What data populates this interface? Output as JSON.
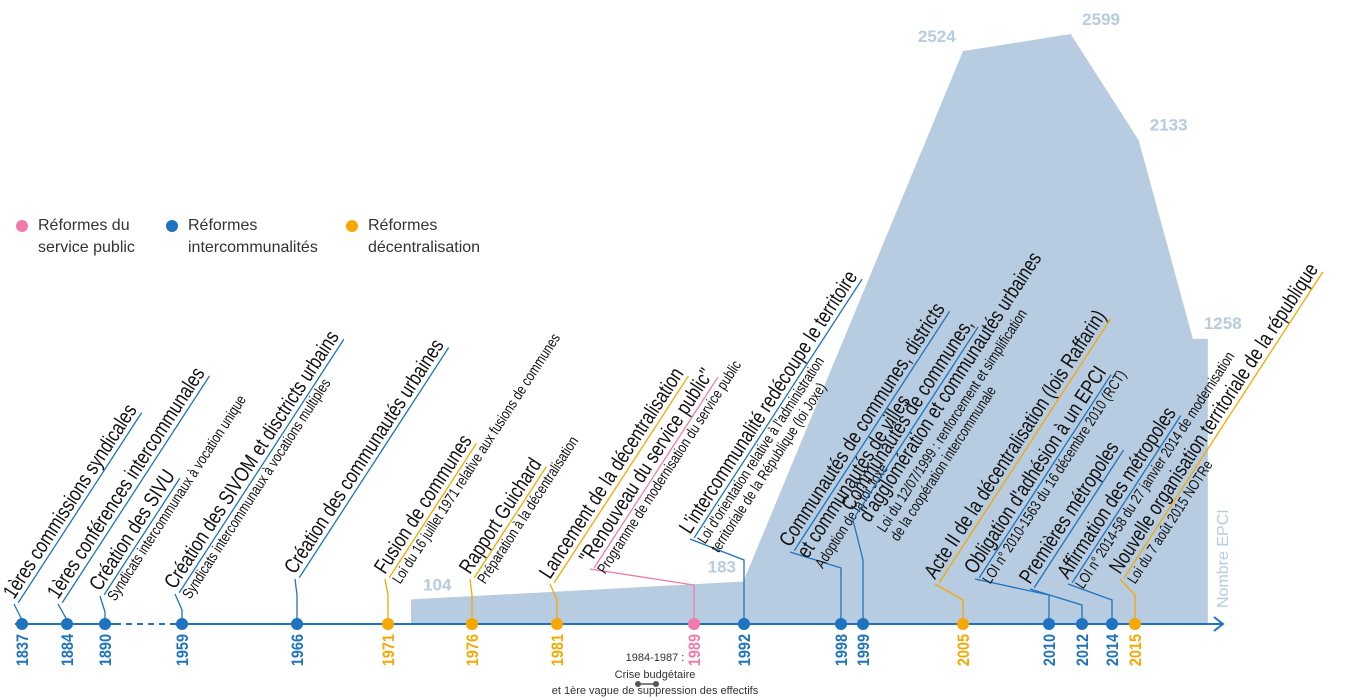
{
  "legend": [
    {
      "label": [
        "Réformes du",
        "service public"
      ],
      "color": "#f07aaa"
    },
    {
      "label": [
        "Réformes",
        "intercommunalités"
      ],
      "color": "#1e73be"
    },
    {
      "label": [
        "Réformes",
        "décentralisation"
      ],
      "color": "#f5a800"
    }
  ],
  "epci": {
    "label": "Nombre EPCI",
    "color": "#b7cce0",
    "x": [
      1972.3,
      1992,
      2005,
      2011.3,
      2015.3,
      2018.5
    ],
    "values": [
      104,
      183,
      2524,
      2599,
      2133,
      1258
    ]
  },
  "events": [
    {
      "year": 1837,
      "color": "#1e73be",
      "title": [
        "1ères commissions syndicales"
      ],
      "subtitle": []
    },
    {
      "year": 1884,
      "color": "#1e73be",
      "title": [
        "1ères conférences intercommunales"
      ],
      "subtitle": []
    },
    {
      "year": 1890,
      "color": "#1e73be",
      "title": [
        "Création des SIVU"
      ],
      "subtitle": [
        "Syndicats intercommunaux à vocation unique"
      ]
    },
    {
      "year": 1959,
      "color": "#1e73be",
      "title": [
        "Création des SIVOM et disctricts urbains"
      ],
      "subtitle": [
        "Syndicats intercommunaux à vocations multiples"
      ]
    },
    {
      "year": 1966,
      "color": "#1e73be",
      "title": [
        "Création des communautés urbaines"
      ],
      "subtitle": []
    },
    {
      "year": 1971,
      "color": "#f5a800",
      "title": [
        "Fusion de communes"
      ],
      "subtitle": [
        "Loi du 16 juillet 1971 relative aux fusions de communes"
      ]
    },
    {
      "year": 1976,
      "color": "#f5a800",
      "title": [
        "Rapport Guichard"
      ],
      "subtitle": [
        "Préparation à la décentralisation"
      ]
    },
    {
      "year": 1981,
      "color": "#f5a800",
      "title": [
        "Lancement de la décentralisation"
      ],
      "subtitle": []
    },
    {
      "year": 1989,
      "color": "#f07aaa",
      "title": [
        "\"Renouveau du service public\""
      ],
      "subtitle": [
        "Programme de modernisation du service public"
      ]
    },
    {
      "year": 1992,
      "color": "#1e73be",
      "title": [
        "L'intercommunalité redécoupe le territoire"
      ],
      "subtitle": [
        "Loi d'orientation relative à l'administration",
        "territoriale de la République (loi Joxe)"
      ]
    },
    {
      "year": 1998,
      "color": "#1e73be",
      "title": [
        "Communautés de communes, districts",
        "et communautés de villes"
      ],
      "subtitle": [
        "Adoption de la loi Joxe"
      ]
    },
    {
      "year": 1999,
      "color": "#1e73be",
      "title": [
        "Communautés de communes,",
        "d'agglomération et communautés urbaines"
      ],
      "subtitle": [
        "Loi du 12/07/1999 : renforcement et simplification",
        "de la coopération intercommunale"
      ]
    },
    {
      "year": 2005,
      "color": "#f5a800",
      "title": [
        "Acte II de la décentralisation (lois Raffarin)"
      ],
      "subtitle": []
    },
    {
      "year": 2010,
      "color": "#1e73be",
      "title": [
        "Obligation d'adhésion à un EPCI"
      ],
      "subtitle": [
        "LOI n° 2010-1563 du 16 décembre 2010 (RCT)"
      ]
    },
    {
      "year": 2012,
      "color": "#1e73be",
      "title": [
        "Premières métropoles"
      ],
      "subtitle": []
    },
    {
      "year": 2014,
      "color": "#1e73be",
      "title": [
        "Affirmation des métropoles"
      ],
      "subtitle": [
        "LOI n° 2014-58 du 27 janvier 2014 de modernisation"
      ]
    },
    {
      "year": 2015,
      "color": "#f5a800",
      "title": [
        "Nouvelle organisation territoriale de la république"
      ],
      "subtitle": [
        "Loi du 7 août 2015 NOTRe"
      ]
    }
  ],
  "note": {
    "lines": [
      "1984-1987 :",
      "Crise budgétaire",
      "et 1ère vague de suppression des effectifs"
    ]
  }
}
